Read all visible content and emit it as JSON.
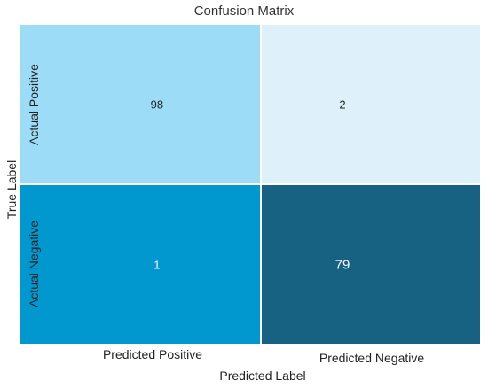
{
  "chart_data": {
    "type": "heatmap",
    "title": "Confusion Matrix",
    "xlabel": "Predicted Label",
    "ylabel": "True Label",
    "x_categories": [
      "Predicted Positive",
      "Predicted Negative"
    ],
    "y_categories": [
      "Actual Positive",
      "Actual Negative"
    ],
    "values": [
      [
        98,
        2
      ],
      [
        1,
        79
      ]
    ],
    "cell_colors": [
      [
        "#9cdcf7",
        "#def1fb"
      ],
      [
        "#0098cf",
        "#176182"
      ]
    ],
    "text_colors": [
      [
        "#222222",
        "#222222"
      ],
      [
        "#ffffff",
        "#ffffff"
      ]
    ]
  }
}
